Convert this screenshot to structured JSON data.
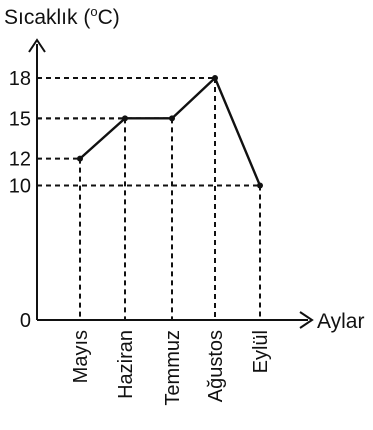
{
  "chart_data": {
    "type": "line",
    "title": "",
    "ylabel": "Sıcaklık (°C)",
    "ylabel_parts": {
      "prefix": "Sıcaklık (",
      "superscript": "o",
      "suffix": "C)"
    },
    "xlabel": "Aylar",
    "categories": [
      "Mayıs",
      "Haziran",
      "Temmuz",
      "Ağustos",
      "Eylül"
    ],
    "values": [
      12,
      15,
      15,
      18,
      10
    ],
    "yticks": [
      0,
      10,
      12,
      15,
      18
    ],
    "ytick_labels": [
      "0",
      "10",
      "12",
      "15",
      "18"
    ],
    "ylim": [
      0,
      18
    ],
    "grid": false,
    "guide_lines": "dashed"
  }
}
